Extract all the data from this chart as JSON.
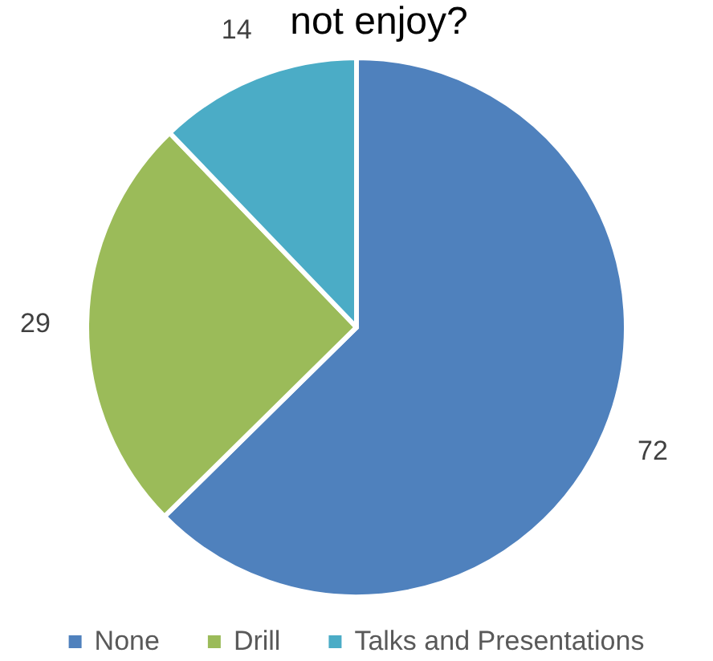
{
  "chart_data": {
    "type": "pie",
    "title": "not enjoy?",
    "categories": [
      "None",
      "Drill",
      "Talks and Presentations"
    ],
    "values": [
      72,
      29,
      14
    ],
    "colors": [
      "#4f81bd",
      "#9bbb59",
      "#4bacc6"
    ],
    "data_labels": true,
    "legend": "bottom"
  }
}
